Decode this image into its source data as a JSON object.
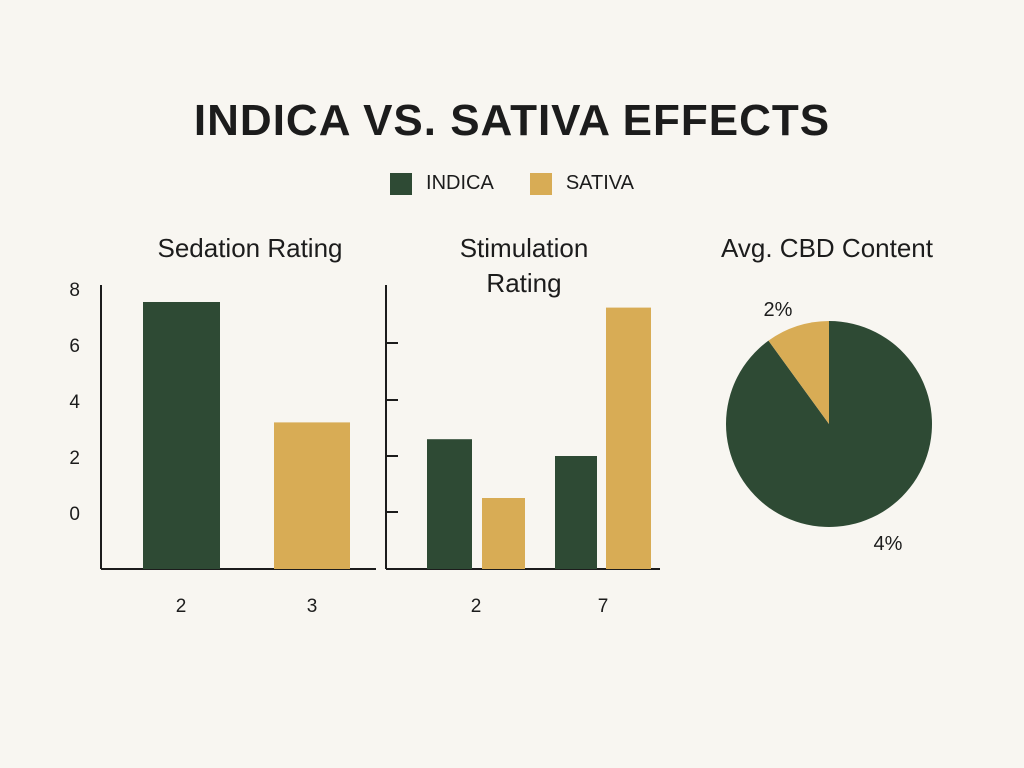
{
  "title": "INDICA VS. SATIVA EFFECTS",
  "colors": {
    "indica": "#2e4a34",
    "sativa": "#d8ac55",
    "axis": "#1c1c1c",
    "background": "#f8f6f1"
  },
  "legend": [
    {
      "label": "INDICA",
      "color": "#2e4a34"
    },
    {
      "label": "SATIVA",
      "color": "#d8ac55"
    }
  ],
  "chart_data": [
    {
      "type": "bar",
      "title": "Sedation Rating",
      "categories": [
        "2",
        "3"
      ],
      "y_ticks": [
        "8",
        "6",
        "4",
        "2",
        "0"
      ],
      "series": [
        {
          "name": "INDICA",
          "values": [
            7.5,
            null
          ]
        },
        {
          "name": "SATIVA",
          "values": [
            null,
            3.2
          ]
        }
      ]
    },
    {
      "type": "bar",
      "title_lines": [
        "Stimulation",
        "Rating"
      ],
      "categories": [
        "2",
        "7"
      ],
      "series": [
        {
          "name": "INDICA",
          "values": [
            2.6,
            2.0
          ]
        },
        {
          "name": "SATIVA",
          "values": [
            0.5,
            7.3
          ]
        }
      ]
    },
    {
      "type": "pie",
      "title": "Avg. CBD Content",
      "slices": [
        {
          "name": "INDICA",
          "label": "4%",
          "value": 90
        },
        {
          "name": "SATIVA",
          "label": "2%",
          "value": 10
        }
      ]
    }
  ]
}
